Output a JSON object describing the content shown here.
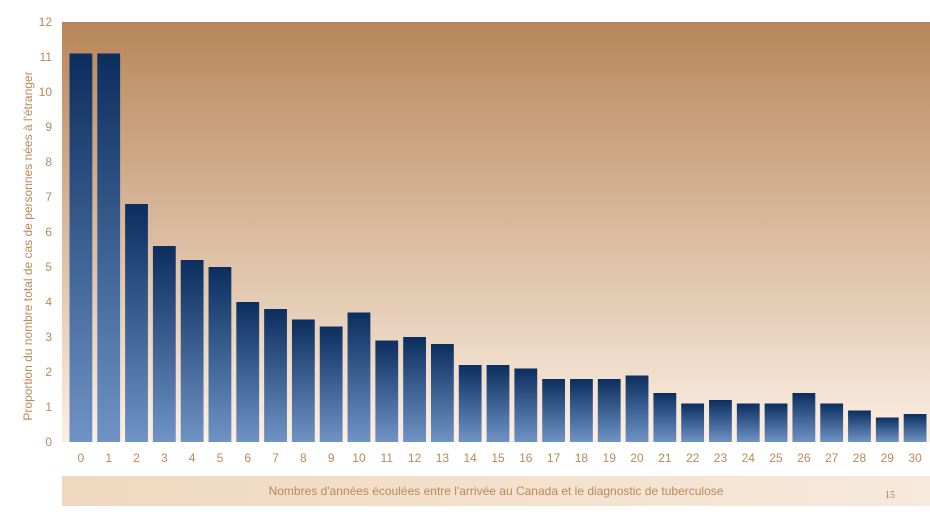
{
  "chart_data": {
    "type": "bar",
    "title": "",
    "xlabel": "Nombres d'années écoulées entre l'arrivée au Canada et le diagnostic de tuberculose",
    "ylabel": "Proportion du nombre total de cas de personnes nées à l'étranger",
    "ylim": [
      0,
      12
    ],
    "yticks": [
      "0",
      "1",
      "2",
      "3",
      "4",
      "5",
      "6",
      "7",
      "8",
      "9",
      "10",
      "11",
      "12"
    ],
    "categories": [
      "0",
      "1",
      "2",
      "3",
      "4",
      "5",
      "6",
      "7",
      "8",
      "9",
      "10",
      "11",
      "12",
      "13",
      "14",
      "15",
      "16",
      "17",
      "18",
      "19",
      "20",
      "21",
      "22",
      "23",
      "24",
      "25",
      "26",
      "27",
      "28",
      "29",
      "30"
    ],
    "values": [
      11.1,
      11.1,
      6.8,
      5.6,
      5.2,
      5.0,
      4.0,
      3.8,
      3.5,
      3.3,
      3.7,
      2.9,
      3.0,
      2.8,
      2.2,
      2.2,
      2.1,
      1.8,
      1.8,
      1.8,
      1.9,
      1.4,
      1.1,
      1.2,
      1.1,
      1.1,
      1.4,
      1.1,
      0.9,
      0.7,
      0.8
    ],
    "grid": false,
    "legend": "none",
    "colors": {
      "bar_top": "#0b2e5f",
      "bar_bottom": "#6e93c4",
      "plot_bg_top": "#b8865a",
      "plot_bg_bottom": "#fbefe3",
      "text": "#b98a58"
    }
  },
  "footer": {
    "page_number": "15"
  }
}
